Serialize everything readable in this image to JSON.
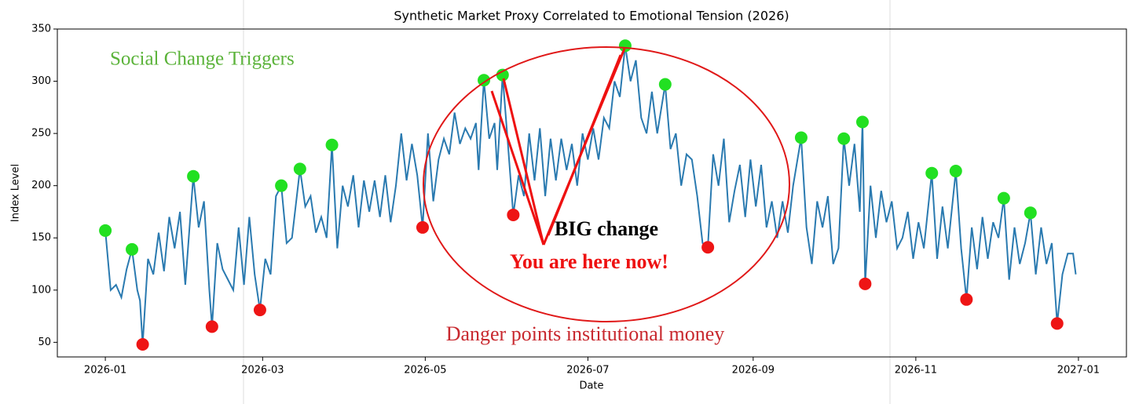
{
  "chart_data": {
    "type": "line",
    "title": "Synthetic Market Proxy Correlated to Emotional Tension (2026)",
    "x_label": "Date",
    "y_label": "Index Level",
    "annotations": [
      "Social Change Triggers",
      "Danger points  institutional money",
      "BIG change",
      "You are here now!"
    ],
    "xlim": [
      -18,
      383
    ],
    "xticks": [
      {
        "value": 0,
        "label": "2026-01"
      },
      {
        "value": 59,
        "label": "2026-03"
      },
      {
        "value": 120,
        "label": "2026-05"
      },
      {
        "value": 181,
        "label": "2026-07"
      },
      {
        "value": 243,
        "label": "2026-09"
      },
      {
        "value": 304,
        "label": "2026-11"
      },
      {
        "value": 365,
        "label": "2027-01"
      }
    ],
    "ylim": [
      36,
      350
    ],
    "yticks": [
      50,
      100,
      150,
      200,
      250,
      300,
      350
    ],
    "series": [
      {
        "type": "line",
        "color": "#2a7ab0",
        "x": [
          0,
          2,
          4,
          6,
          8,
          10,
          12,
          13,
          14,
          16,
          18,
          20,
          22,
          24,
          26,
          28,
          30,
          33,
          35,
          37,
          39,
          40,
          42,
          44,
          46,
          48,
          50,
          52,
          54,
          56,
          58,
          60,
          62,
          64,
          66,
          68,
          70,
          73,
          75,
          77,
          79,
          81,
          83,
          85,
          87,
          89,
          91,
          93,
          95,
          97,
          99,
          101,
          103,
          105,
          107,
          109,
          111,
          113,
          115,
          117,
          119,
          121,
          123,
          125,
          127,
          129,
          131,
          133,
          135,
          137,
          139,
          140,
          142,
          144,
          146,
          147,
          149,
          151,
          153,
          155,
          157,
          159,
          161,
          163,
          165,
          167,
          169,
          171,
          173,
          175,
          177,
          179,
          181,
          183,
          185,
          187,
          189,
          191,
          193,
          195,
          197,
          199,
          201,
          203,
          205,
          207,
          210,
          212,
          214,
          216,
          218,
          220,
          222,
          224,
          226,
          228,
          230,
          232,
          234,
          236,
          238,
          240,
          242,
          244,
          246,
          248,
          250,
          252,
          254,
          256,
          258,
          261,
          263,
          265,
          267,
          269,
          271,
          273,
          275,
          277,
          279,
          281,
          283,
          284,
          285,
          287,
          289,
          291,
          293,
          295,
          297,
          299,
          301,
          303,
          305,
          307,
          310,
          312,
          314,
          316,
          319,
          321,
          323,
          325,
          327,
          329,
          331,
          333,
          335,
          337,
          339,
          341,
          343,
          345,
          347,
          349,
          351,
          353,
          355,
          357,
          359,
          361,
          363,
          364
        ],
        "values": [
          157,
          100,
          105,
          93,
          120,
          139,
          100,
          90,
          48,
          130,
          115,
          155,
          118,
          170,
          140,
          175,
          105,
          209,
          160,
          185,
          100,
          65,
          145,
          120,
          110,
          100,
          160,
          105,
          170,
          115,
          81,
          130,
          115,
          190,
          200,
          145,
          150,
          216,
          180,
          190,
          155,
          170,
          150,
          239,
          140,
          200,
          180,
          210,
          160,
          205,
          175,
          205,
          170,
          210,
          165,
          200,
          250,
          205,
          240,
          210,
          160,
          250,
          185,
          225,
          245,
          230,
          270,
          240,
          255,
          245,
          260,
          215,
          301,
          245,
          260,
          215,
          306,
          240,
          172,
          210,
          190,
          250,
          205,
          255,
          190,
          245,
          205,
          245,
          215,
          240,
          200,
          250,
          225,
          255,
          225,
          265,
          255,
          300,
          285,
          334,
          300,
          320,
          265,
          250,
          290,
          250,
          297,
          235,
          250,
          200,
          230,
          225,
          190,
          145,
          141,
          230,
          200,
          245,
          165,
          195,
          220,
          170,
          225,
          180,
          220,
          160,
          185,
          150,
          185,
          155,
          200,
          246,
          160,
          125,
          185,
          160,
          190,
          125,
          140,
          245,
          200,
          240,
          175,
          261,
          106,
          200,
          150,
          195,
          165,
          185,
          140,
          150,
          175,
          130,
          165,
          140,
          212,
          130,
          180,
          140,
          214,
          140,
          91,
          160,
          120,
          170,
          130,
          165,
          150,
          188,
          110,
          160,
          125,
          145,
          174,
          115,
          160,
          125,
          145,
          68,
          115,
          135,
          135,
          115
        ]
      },
      {
        "type": "scatter",
        "color": "#22e022",
        "x": [
          0,
          10,
          33,
          66,
          73,
          85,
          142,
          149,
          195,
          210,
          261,
          277,
          284,
          310,
          319,
          337,
          347
        ],
        "values": [
          157,
          139,
          209,
          200,
          216,
          239,
          301,
          306,
          334,
          297,
          246,
          245,
          261,
          212,
          214,
          188,
          174
        ]
      },
      {
        "type": "scatter",
        "color": "#ee1515",
        "x": [
          14,
          40,
          58,
          119,
          153,
          226,
          285,
          323,
          357
        ],
        "values": [
          48,
          65,
          81,
          160,
          172,
          141,
          106,
          91,
          68
        ]
      }
    ]
  }
}
